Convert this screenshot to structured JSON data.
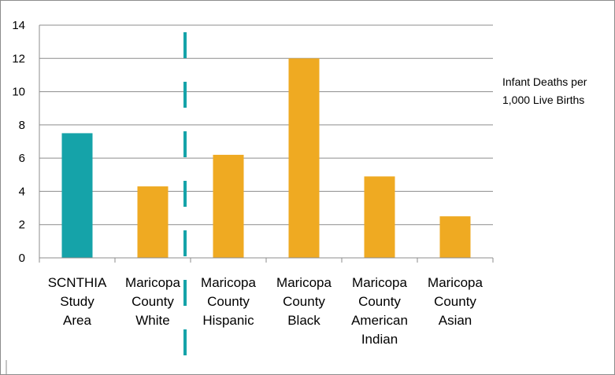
{
  "chart_data": {
    "type": "bar",
    "categories": [
      [
        "SCNTHIA",
        "Study",
        "Area"
      ],
      [
        "Maricopa",
        "County",
        "White"
      ],
      [
        "Maricopa",
        "County",
        "Hispanic"
      ],
      [
        "Maricopa",
        "County",
        "Black"
      ],
      [
        "Maricopa",
        "County",
        "American",
        "Indian"
      ],
      [
        "Maricopa",
        "County",
        "Asian"
      ]
    ],
    "values": [
      7.5,
      4.3,
      6.2,
      12.0,
      4.9,
      2.5
    ],
    "bar_colors": [
      "#15a3a9",
      "#efaa22",
      "#efaa22",
      "#efaa22",
      "#efaa22",
      "#efaa22"
    ],
    "ylim": [
      0,
      14
    ],
    "y_ticks": [
      "0",
      "2",
      "4",
      "6",
      "8",
      "10",
      "12",
      "14"
    ],
    "grid": true,
    "legend": {
      "position": "right",
      "lines": [
        "Infant Deaths per",
        "1,000 Live Births"
      ]
    },
    "divider": {
      "style": "dashed",
      "color": "#15a3a9",
      "between_categories": [
        0,
        1
      ]
    },
    "title": "",
    "xlabel": "",
    "ylabel": ""
  }
}
